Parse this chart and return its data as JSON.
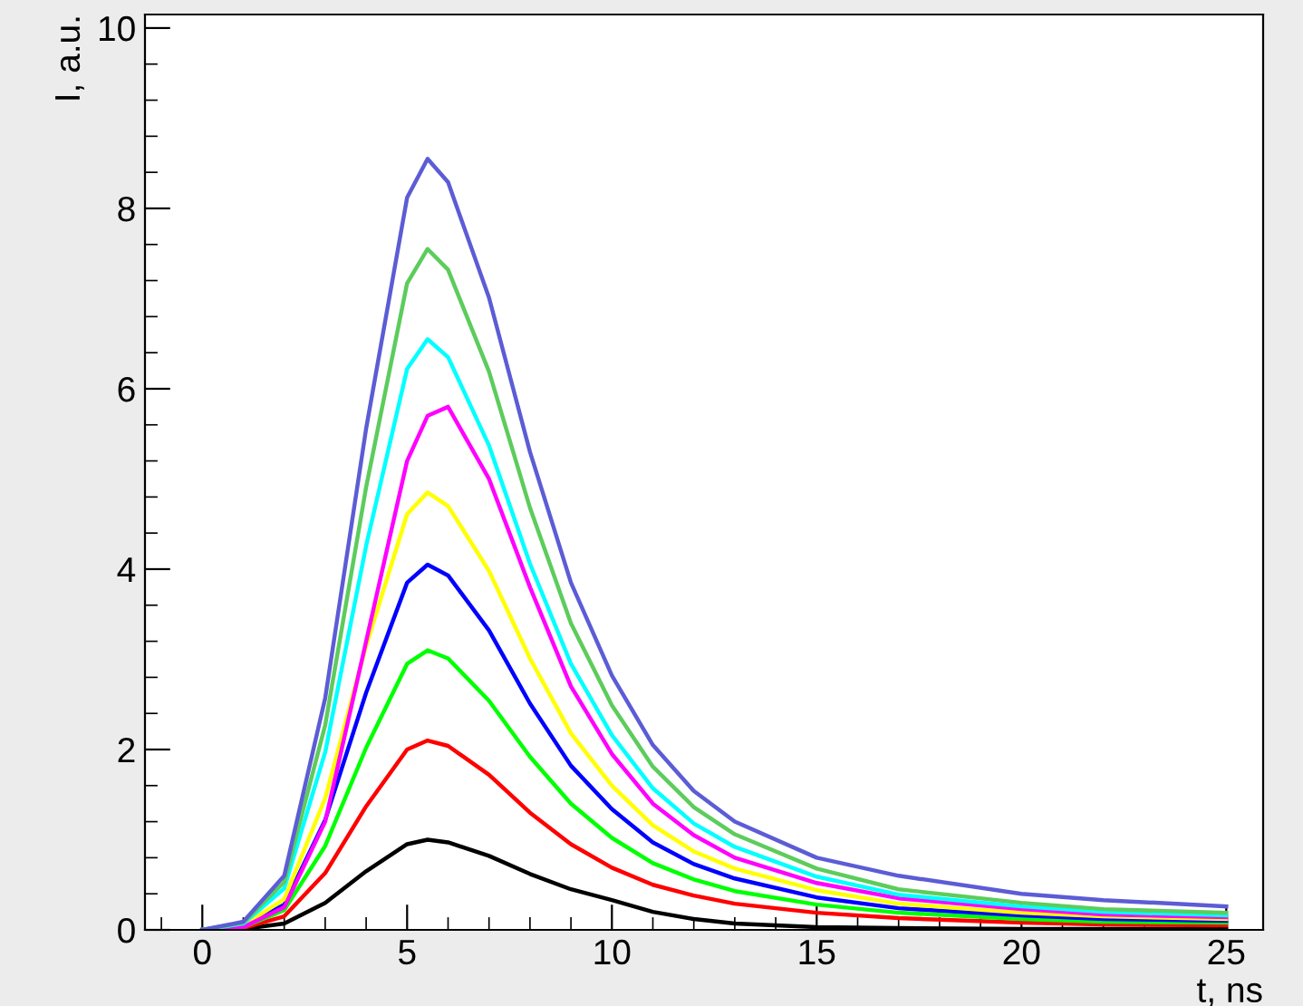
{
  "chart_data": {
    "type": "line",
    "xlabel": "t, ns",
    "ylabel": "I, a.u.",
    "x": [
      0,
      1,
      2,
      3,
      4,
      5,
      5.5,
      6,
      7,
      8,
      9,
      10,
      11,
      12,
      13,
      15,
      17,
      20,
      22,
      25
    ],
    "series": [
      {
        "color": "#000000",
        "values": [
          0,
          0.01,
          0.07,
          0.3,
          0.65,
          0.95,
          1.0,
          0.97,
          0.82,
          0.62,
          0.45,
          0.33,
          0.2,
          0.12,
          0.07,
          0.03,
          0.02,
          0.01,
          0.01,
          0.01
        ]
      },
      {
        "color": "#ff0000",
        "values": [
          0,
          0.02,
          0.15,
          0.63,
          1.37,
          2.0,
          2.1,
          2.04,
          1.72,
          1.3,
          0.95,
          0.69,
          0.5,
          0.38,
          0.29,
          0.19,
          0.13,
          0.08,
          0.06,
          0.05
        ]
      },
      {
        "color": "#00ff00",
        "values": [
          0,
          0.03,
          0.22,
          0.93,
          2.02,
          2.95,
          3.1,
          3.01,
          2.54,
          1.92,
          1.4,
          1.02,
          0.74,
          0.56,
          0.43,
          0.28,
          0.19,
          0.12,
          0.09,
          0.08
        ]
      },
      {
        "color": "#0000ff",
        "values": [
          0,
          0.04,
          0.28,
          1.22,
          2.63,
          3.85,
          4.05,
          3.93,
          3.32,
          2.51,
          1.82,
          1.34,
          0.97,
          0.73,
          0.57,
          0.36,
          0.24,
          0.16,
          0.12,
          0.1
        ]
      },
      {
        "color": "#ffff00",
        "values": [
          0,
          0.05,
          0.34,
          1.46,
          3.15,
          4.61,
          4.85,
          4.7,
          3.98,
          3.01,
          2.18,
          1.6,
          1.16,
          0.87,
          0.68,
          0.44,
          0.29,
          0.19,
          0.15,
          0.12
        ]
      },
      {
        "color": "#ff00ff",
        "values": [
          0,
          0.03,
          0.25,
          1.2,
          3.2,
          5.2,
          5.7,
          5.8,
          5.0,
          3.8,
          2.7,
          1.95,
          1.4,
          1.05,
          0.8,
          0.52,
          0.35,
          0.23,
          0.17,
          0.14
        ]
      },
      {
        "color": "#00ffff",
        "values": [
          0,
          0.07,
          0.46,
          1.97,
          4.26,
          6.22,
          6.55,
          6.35,
          5.37,
          4.06,
          2.95,
          2.16,
          1.57,
          1.18,
          0.92,
          0.59,
          0.39,
          0.26,
          0.2,
          0.16
        ]
      },
      {
        "color": "#5ccc5c",
        "values": [
          0,
          0.08,
          0.53,
          2.27,
          4.91,
          7.17,
          7.55,
          7.32,
          6.19,
          4.68,
          3.4,
          2.49,
          1.81,
          1.36,
          1.06,
          0.68,
          0.45,
          0.3,
          0.23,
          0.19
        ]
      },
      {
        "color": "#5c5cd6",
        "values": [
          0,
          0.09,
          0.6,
          2.57,
          5.56,
          8.12,
          8.55,
          8.29,
          7.01,
          5.3,
          3.85,
          2.82,
          2.05,
          1.54,
          1.2,
          0.8,
          0.6,
          0.4,
          0.33,
          0.26
        ]
      }
    ],
    "xlim": [
      -1.4,
      25.9
    ],
    "ylim": [
      0,
      10.15
    ],
    "xticks": [
      0,
      5,
      10,
      15,
      20,
      25
    ],
    "yticks": [
      0,
      2,
      4,
      6,
      8,
      10
    ],
    "grid": false,
    "legend": false,
    "marker": "none",
    "line_style": "solid"
  }
}
